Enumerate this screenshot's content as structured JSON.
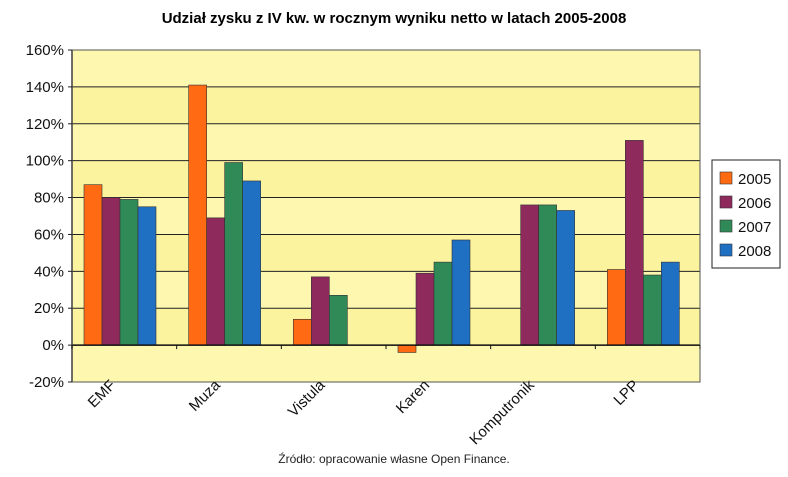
{
  "chart_data": {
    "type": "bar",
    "title": "Udział zysku z IV kw. w rocznym wyniku netto w latach 2005-2008",
    "xlabel": "",
    "ylabel": "",
    "ylim": [
      -20,
      160
    ],
    "y_unit": "%",
    "yticks": [
      "-20%",
      "0%",
      "20%",
      "40%",
      "60%",
      "80%",
      "100%",
      "120%",
      "140%",
      "160%"
    ],
    "categories": [
      "EMF",
      "Muza",
      "Vistula",
      "Karen",
      "Komputronik",
      "LPP"
    ],
    "series": [
      {
        "name": "2005",
        "color": "#ff6a13",
        "values": [
          87,
          141,
          14,
          -4,
          null,
          41
        ]
      },
      {
        "name": "2006",
        "color": "#8f2a5c",
        "values": [
          80,
          69,
          37,
          39,
          76,
          111
        ]
      },
      {
        "name": "2007",
        "color": "#2f8a57",
        "values": [
          79,
          99,
          27,
          45,
          76,
          38
        ]
      },
      {
        "name": "2008",
        "color": "#1f6fc2",
        "values": [
          75,
          89,
          null,
          57,
          73,
          45
        ]
      }
    ],
    "grid": true,
    "legend": "right",
    "plot_background": "#fdf7b0",
    "plot_band_color": "#fbf08f"
  },
  "source_note": "Źródło: opracowanie własne Open Finance."
}
